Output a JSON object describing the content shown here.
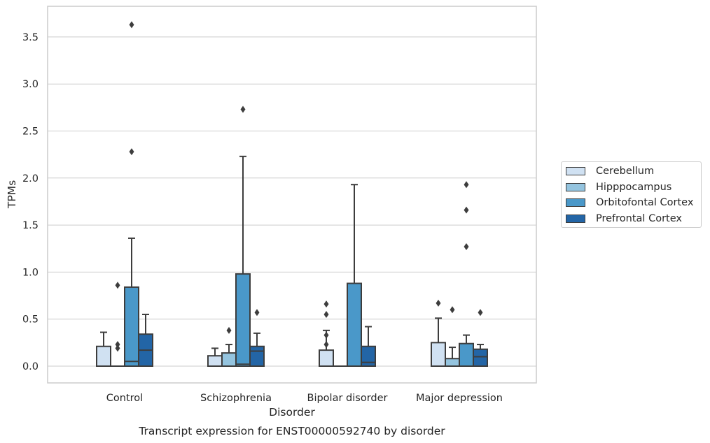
{
  "chart_data": {
    "type": "box",
    "title": "Transcript expression for ENST00000592740 by disorder",
    "xlabel": "Disorder",
    "ylabel": "TPMs",
    "ylim": [
      -0.17,
      3.78
    ],
    "yticks": [
      "0.0",
      "0.5",
      "1.0",
      "1.5",
      "2.0",
      "2.5",
      "3.0",
      "3.5"
    ],
    "ytick_values": [
      0,
      0.5,
      1.0,
      1.5,
      2.0,
      2.5,
      3.0,
      3.5
    ],
    "categories": [
      "Control",
      "Schizophrenia",
      "Bipolar disorder",
      "Major depression"
    ],
    "grid": true,
    "legend_position": "right",
    "series": [
      {
        "name": "Cerebellum",
        "color": "#d0e1f2",
        "boxes": [
          {
            "whislo": 0,
            "q1": 0,
            "med": 0,
            "q3": 0.21,
            "whishi": 0.36,
            "fliers": []
          },
          {
            "whislo": 0,
            "q1": 0,
            "med": 0,
            "q3": 0.11,
            "whishi": 0.19,
            "fliers": []
          },
          {
            "whislo": 0,
            "q1": 0,
            "med": 0,
            "q3": 0.17,
            "whishi": 0.38,
            "fliers": [
              0.66,
              0.55,
              0.33,
              0.23
            ]
          },
          {
            "whislo": 0,
            "q1": 0,
            "med": 0,
            "q3": 0.25,
            "whishi": 0.51,
            "fliers": [
              0.67
            ]
          }
        ]
      },
      {
        "name": "Hipppocampus",
        "color": "#94c4df",
        "boxes": [
          {
            "whislo": 0,
            "q1": 0,
            "med": 0,
            "q3": 0,
            "whishi": 0,
            "fliers": [
              0.86,
              0.23,
              0.19
            ]
          },
          {
            "whislo": 0,
            "q1": 0,
            "med": 0,
            "q3": 0.14,
            "whishi": 0.23,
            "fliers": [
              0.38
            ]
          },
          {
            "whislo": 0,
            "q1": 0,
            "med": 0,
            "q3": 0,
            "whishi": 0,
            "fliers": []
          },
          {
            "whislo": 0,
            "q1": 0,
            "med": 0,
            "q3": 0.08,
            "whishi": 0.2,
            "fliers": [
              0.6
            ]
          }
        ]
      },
      {
        "name": "Orbitofontal Cortex",
        "color": "#4a98c9",
        "boxes": [
          {
            "whislo": 0,
            "q1": 0,
            "med": 0.05,
            "q3": 0.84,
            "whishi": 1.36,
            "fliers": [
              3.63,
              2.28
            ]
          },
          {
            "whislo": 0,
            "q1": 0,
            "med": 0.02,
            "q3": 0.98,
            "whishi": 2.23,
            "fliers": [
              2.73
            ]
          },
          {
            "whislo": 0,
            "q1": 0,
            "med": 0,
            "q3": 0.88,
            "whishi": 1.93,
            "fliers": []
          },
          {
            "whislo": 0,
            "q1": 0,
            "med": 0,
            "q3": 0.24,
            "whishi": 0.33,
            "fliers": [
              1.93,
              1.66,
              1.27
            ]
          }
        ]
      },
      {
        "name": "Prefrontal Cortex",
        "color": "#2365a6",
        "boxes": [
          {
            "whislo": 0,
            "q1": 0,
            "med": 0.17,
            "q3": 0.34,
            "whishi": 0.55,
            "fliers": []
          },
          {
            "whislo": 0,
            "q1": 0,
            "med": 0.16,
            "q3": 0.21,
            "whishi": 0.35,
            "fliers": [
              0.57
            ]
          },
          {
            "whislo": 0,
            "q1": 0,
            "med": 0.04,
            "q3": 0.21,
            "whishi": 0.42,
            "fliers": []
          },
          {
            "whislo": 0,
            "q1": 0,
            "med": 0.1,
            "q3": 0.18,
            "whishi": 0.23,
            "fliers": [
              0.57
            ]
          }
        ]
      }
    ]
  }
}
